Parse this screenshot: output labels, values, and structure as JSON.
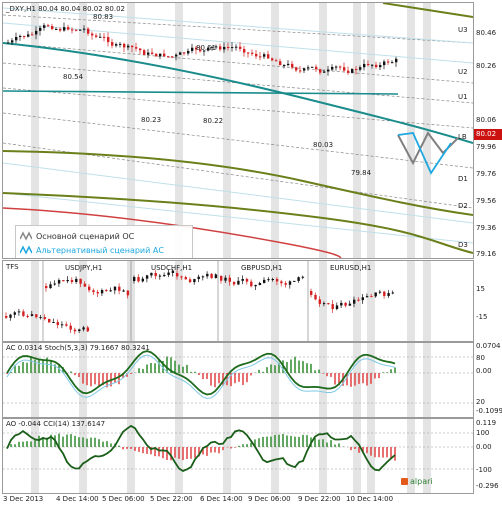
{
  "header": {
    "symbol": "_DXY,H1",
    "ohlc": "80.04 80.04 80.02 80.02"
  },
  "main_chart": {
    "price_labels": [
      "80.83",
      "80.54",
      "80.61",
      "80.23",
      "80.22",
      "80.03",
      "79.84"
    ],
    "right_axis": [
      "80.46",
      "80.26",
      "80.06",
      "79.96",
      "79.76",
      "79.56",
      "79.36",
      "79.16"
    ],
    "current_price": "80.02",
    "levels": [
      "U3",
      "U2",
      "U1",
      "LB",
      "D1",
      "D2",
      "D3"
    ],
    "legend": {
      "base": "Основной сценарий ОС",
      "alt": "Альтернативный сценарий АС"
    }
  },
  "tfs_panel": {
    "title": "TFS",
    "pairs": [
      "USDJPY,H1",
      "USDCHF,H1",
      "GBPUSD,H1",
      "EURUSD,H1"
    ],
    "right_axis": [
      "15",
      "-15"
    ]
  },
  "ac_panel": {
    "title": "AC 0.0314",
    "stoch": "Stoch(5,3,3) 79.1667 80.3241",
    "right_axis": [
      "0.0704",
      "80",
      "0.00",
      "20",
      "-0.1099"
    ]
  },
  "ao_panel": {
    "title": "AO -0.044",
    "cci": "CCI(14) 137.6147",
    "right_axis": [
      "0.119",
      "100",
      "0.00",
      "-100",
      "-0.296"
    ]
  },
  "time_axis": [
    "3 Dec 2013",
    "4 Dec 14:00",
    "5 Dec 06:00",
    "5 Dec 22:00",
    "6 Dec 14:00",
    "9 Dec 06:00",
    "9 Dec 22:00",
    "10 Dec 14:00"
  ],
  "brand": "alpari",
  "colors": {
    "teal": "#1a8c8c",
    "olive": "#6b7f1a",
    "bull": "#111111",
    "bear": "#d42020",
    "stoch": "#1e6b1e",
    "blue": "#1fa8e0"
  }
}
